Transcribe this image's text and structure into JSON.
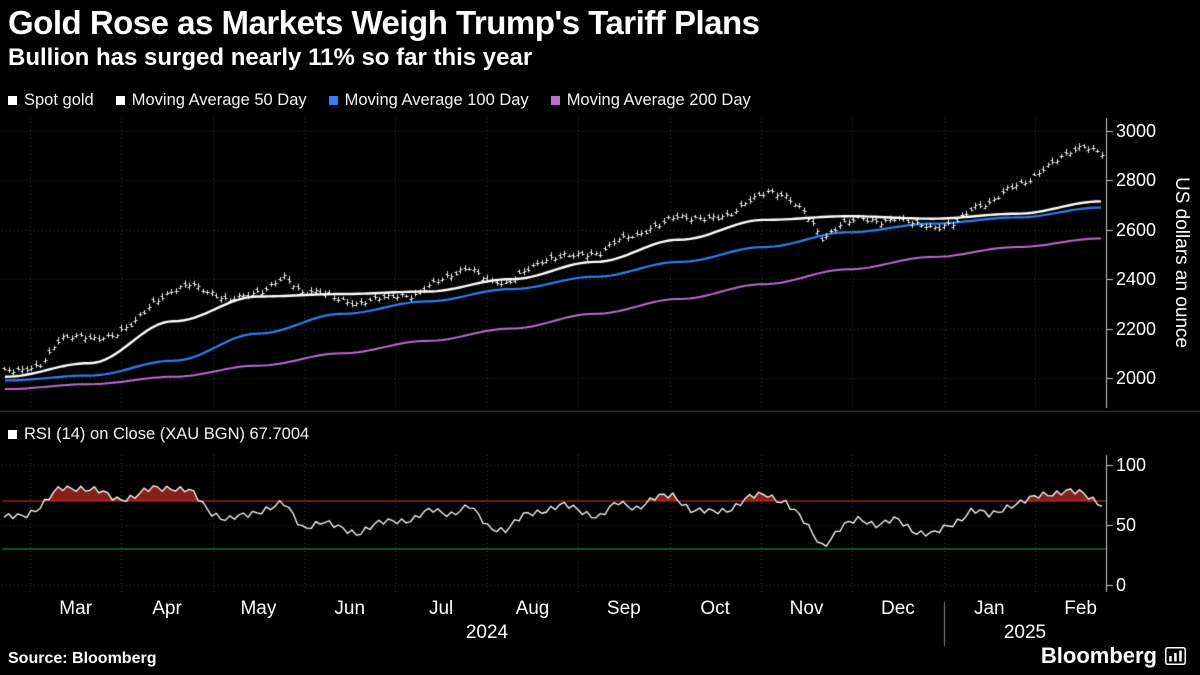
{
  "header": {
    "title": "Gold Rose as Markets Weigh Trump's Tariff Plans",
    "subtitle": "Bullion has surged nearly 11% so far this year"
  },
  "legend": {
    "items": [
      {
        "label": "Spot gold",
        "color": "#ffffff"
      },
      {
        "label": "Moving Average 50 Day",
        "color": "#ffffff"
      },
      {
        "label": "Moving Average 100 Day",
        "color": "#2e80f2"
      },
      {
        "label": "Moving Average 200 Day",
        "color": "#c06ad2"
      }
    ]
  },
  "rsi_legend": {
    "label": "RSI (14)  on Close (XAU BGN) 67.7004",
    "color": "#ffffff"
  },
  "chart_data": [
    {
      "type": "candlestick",
      "name": "Spot gold",
      "ylabel": "US dollars an ounce",
      "yticks": [
        2000,
        2200,
        2400,
        2600,
        2800,
        3000
      ],
      "ylim": [
        1878,
        3052
      ],
      "bar_color": "#ffffff",
      "spot_weekly_close": [
        2025,
        2035,
        2060,
        2160,
        2165,
        2160,
        2180,
        2230,
        2300,
        2350,
        2390,
        2345,
        2310,
        2335,
        2360,
        2415,
        2340,
        2350,
        2325,
        2300,
        2320,
        2330,
        2335,
        2390,
        2410,
        2445,
        2400,
        2385,
        2435,
        2470,
        2500,
        2505,
        2500,
        2560,
        2580,
        2620,
        2655,
        2640,
        2650,
        2665,
        2720,
        2750,
        2735,
        2680,
        2560,
        2620,
        2650,
        2635,
        2650,
        2620,
        2605,
        2630,
        2690,
        2705,
        2770,
        2800,
        2860,
        2900,
        2935,
        2915
      ],
      "series": [
        {
          "name": "Moving Average 50 Day",
          "color": "#ffffff",
          "values": [
            2005,
            2060,
            2230,
            2330,
            2340,
            2350,
            2400,
            2470,
            2560,
            2640,
            2655,
            2645,
            2665,
            2715
          ]
        },
        {
          "name": "Moving Average 100 Day",
          "color": "#2e80f2",
          "values": [
            1990,
            2010,
            2070,
            2180,
            2260,
            2310,
            2360,
            2410,
            2470,
            2530,
            2590,
            2625,
            2650,
            2690
          ]
        },
        {
          "name": "Moving Average 200 Day",
          "color": "#c06ad2",
          "values": [
            1955,
            1975,
            2005,
            2050,
            2100,
            2150,
            2200,
            2260,
            2320,
            2380,
            2440,
            2490,
            2530,
            2565
          ]
        }
      ]
    },
    {
      "type": "line",
      "name": "RSI (14) on Close (XAU BGN)",
      "last_value": 67.7004,
      "yticks": [
        0,
        50,
        100
      ],
      "ylim": [
        0,
        100
      ],
      "line_color": "#ffffff",
      "overbought": {
        "level": 70,
        "color": "#e03131",
        "fill": "rgba(148,36,30,0.9)"
      },
      "oversold": {
        "level": 30,
        "color": "#2f9e44"
      },
      "values": [
        55,
        58,
        66,
        80,
        82,
        78,
        72,
        74,
        80,
        82,
        78,
        62,
        55,
        57,
        64,
        68,
        48,
        53,
        47,
        44,
        50,
        54,
        55,
        62,
        60,
        65,
        49,
        46,
        58,
        63,
        66,
        62,
        57,
        68,
        65,
        72,
        75,
        62,
        60,
        64,
        72,
        76,
        69,
        52,
        33,
        47,
        56,
        50,
        54,
        45,
        42,
        51,
        63,
        57,
        67,
        70,
        76,
        79,
        75,
        68
      ]
    }
  ],
  "x_axis": {
    "months": [
      "Mar",
      "Apr",
      "May",
      "Jun",
      "Jul",
      "Aug",
      "Sep",
      "Oct",
      "Nov",
      "Dec",
      "Jan",
      "Feb"
    ],
    "years": [
      "2024",
      "2025"
    ]
  },
  "footer": {
    "source": "Source: Bloomberg",
    "brand": "Bloomberg"
  }
}
